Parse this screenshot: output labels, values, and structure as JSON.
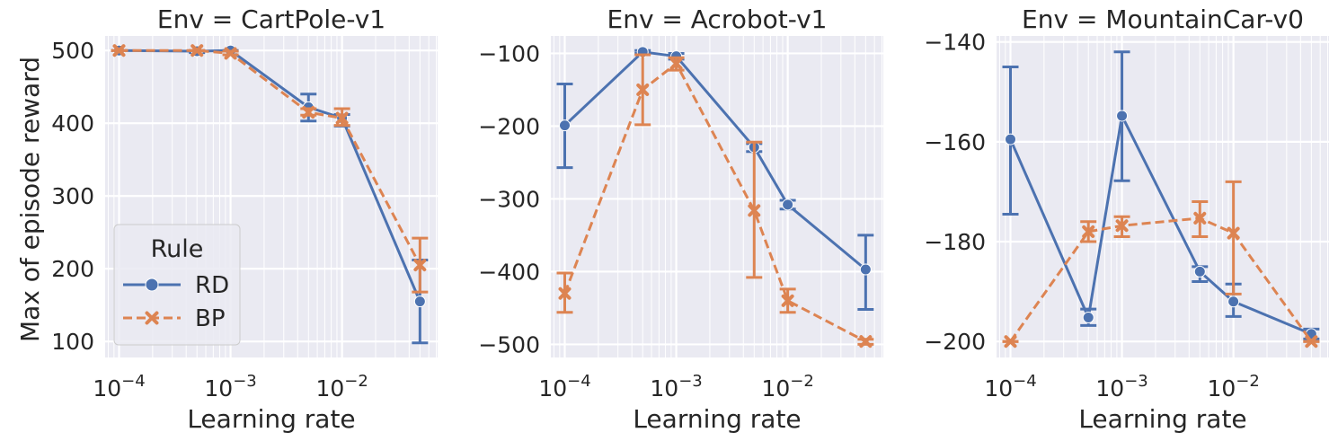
{
  "figure": {
    "y_label": "Max of episode reward",
    "legend": {
      "title": "Rule",
      "placement": "lower-left (first panel)"
    }
  },
  "colors": {
    "RD": "#4c72b0",
    "BP": "#dd8452",
    "panel_bg": "#eaeaf2",
    "grid": "#ffffff"
  },
  "chart_data": [
    {
      "type": "line",
      "title": "Env = CartPole-v1",
      "xlabel": "Learning rate",
      "ylabel": "Max of episode reward",
      "xscale": "log",
      "xlim": [
        7.5e-05,
        0.072
      ],
      "ylim": [
        78,
        520
      ],
      "yticks": [
        100,
        200,
        300,
        400,
        500
      ],
      "ytick_labels": [
        "100",
        "200",
        "300",
        "400",
        "500"
      ],
      "xticks": [
        0.0001,
        0.001,
        0.01
      ],
      "xtick_labels": [
        {
          "base": "10",
          "exp": "−4"
        },
        {
          "base": "10",
          "exp": "−3"
        },
        {
          "base": "10",
          "exp": "−2"
        }
      ],
      "grid": true,
      "x": [
        0.0001,
        0.0005,
        0.001,
        0.005,
        0.01,
        0.05
      ],
      "series": [
        {
          "name": "RD",
          "marker": "circle",
          "line": "solid",
          "values": [
            500,
            499,
            500,
            422,
            407,
            155
          ],
          "err_low": [
            500,
            497,
            499,
            403,
            396,
            98
          ],
          "err_high": [
            500,
            500,
            500,
            440,
            412,
            212
          ]
        },
        {
          "name": "BP",
          "marker": "x",
          "line": "dashed",
          "values": [
            500,
            500,
            496,
            415,
            407,
            205
          ],
          "err_low": [
            500,
            500,
            494,
            411,
            397,
            168
          ],
          "err_high": [
            500,
            500,
            499,
            420,
            420,
            242
          ]
        }
      ]
    },
    {
      "type": "line",
      "title": "Env = Acrobot-v1",
      "xlabel": "Learning rate",
      "xscale": "log",
      "xlim": [
        7.5e-05,
        0.072
      ],
      "ylim": [
        -518,
        -76
      ],
      "yticks": [
        -500,
        -400,
        -300,
        -200,
        -100
      ],
      "ytick_labels": [
        "−500",
        "−400",
        "−300",
        "−200",
        "−100"
      ],
      "xticks": [
        0.0001,
        0.001,
        0.01
      ],
      "xtick_labels": [
        {
          "base": "10",
          "exp": "−4"
        },
        {
          "base": "10",
          "exp": "−3"
        },
        {
          "base": "10",
          "exp": "−2"
        }
      ],
      "grid": true,
      "x": [
        0.0001,
        0.0005,
        0.001,
        0.005,
        0.01,
        0.05
      ],
      "series": [
        {
          "name": "RD",
          "marker": "circle",
          "line": "solid",
          "values": [
            -199,
            -98,
            -104,
            -229,
            -308,
            -397
          ],
          "err_low": [
            -257,
            -100,
            -108,
            -235,
            -314,
            -452
          ],
          "err_high": [
            -142,
            -96,
            -100,
            -224,
            -302,
            -350
          ]
        },
        {
          "name": "BP",
          "marker": "x",
          "line": "dashed",
          "values": [
            -430,
            -150,
            -114,
            -316,
            -440,
            -496
          ],
          "err_low": [
            -456,
            -198,
            -123,
            -408,
            -456,
            -500
          ],
          "err_high": [
            -402,
            -102,
            -106,
            -222,
            -424,
            -493
          ]
        }
      ]
    },
    {
      "type": "line",
      "title": "Env = MountainCar-v0",
      "xlabel": "Learning rate",
      "xscale": "log",
      "xlim": [
        7.5e-05,
        0.072
      ],
      "ylim": [
        -203.2,
        -138.8
      ],
      "yticks": [
        -200,
        -180,
        -160,
        -140
      ],
      "ytick_labels": [
        "−200",
        "−180",
        "−160",
        "−140"
      ],
      "xticks": [
        0.0001,
        0.001,
        0.01
      ],
      "xtick_labels": [
        {
          "base": "10",
          "exp": "−4"
        },
        {
          "base": "10",
          "exp": "−3"
        },
        {
          "base": "10",
          "exp": "−2"
        }
      ],
      "grid": true,
      "x": [
        0.0001,
        0.0005,
        0.001,
        0.005,
        0.01,
        0.05
      ],
      "series": [
        {
          "name": "RD",
          "marker": "circle",
          "line": "solid",
          "values": [
            -159.5,
            -195.2,
            -154.8,
            -186.0,
            -192.0,
            -198.5
          ],
          "err_low": [
            -174.5,
            -196.8,
            -167.8,
            -188.0,
            -195.0,
            -199.5
          ],
          "err_high": [
            -145.0,
            -193.5,
            -142.0,
            -185.0,
            -188.5,
            -197.5
          ]
        },
        {
          "name": "BP",
          "marker": "x",
          "line": "dashed",
          "values": [
            -200.0,
            -178.0,
            -176.8,
            -175.3,
            -178.3,
            -200.0
          ],
          "err_low": [
            -200.0,
            -180.0,
            -179.0,
            -179.0,
            -190.5,
            -200.0
          ],
          "err_high": [
            -200.0,
            -176.0,
            -175.0,
            -172.0,
            -168.0,
            -200.0
          ]
        }
      ]
    }
  ]
}
